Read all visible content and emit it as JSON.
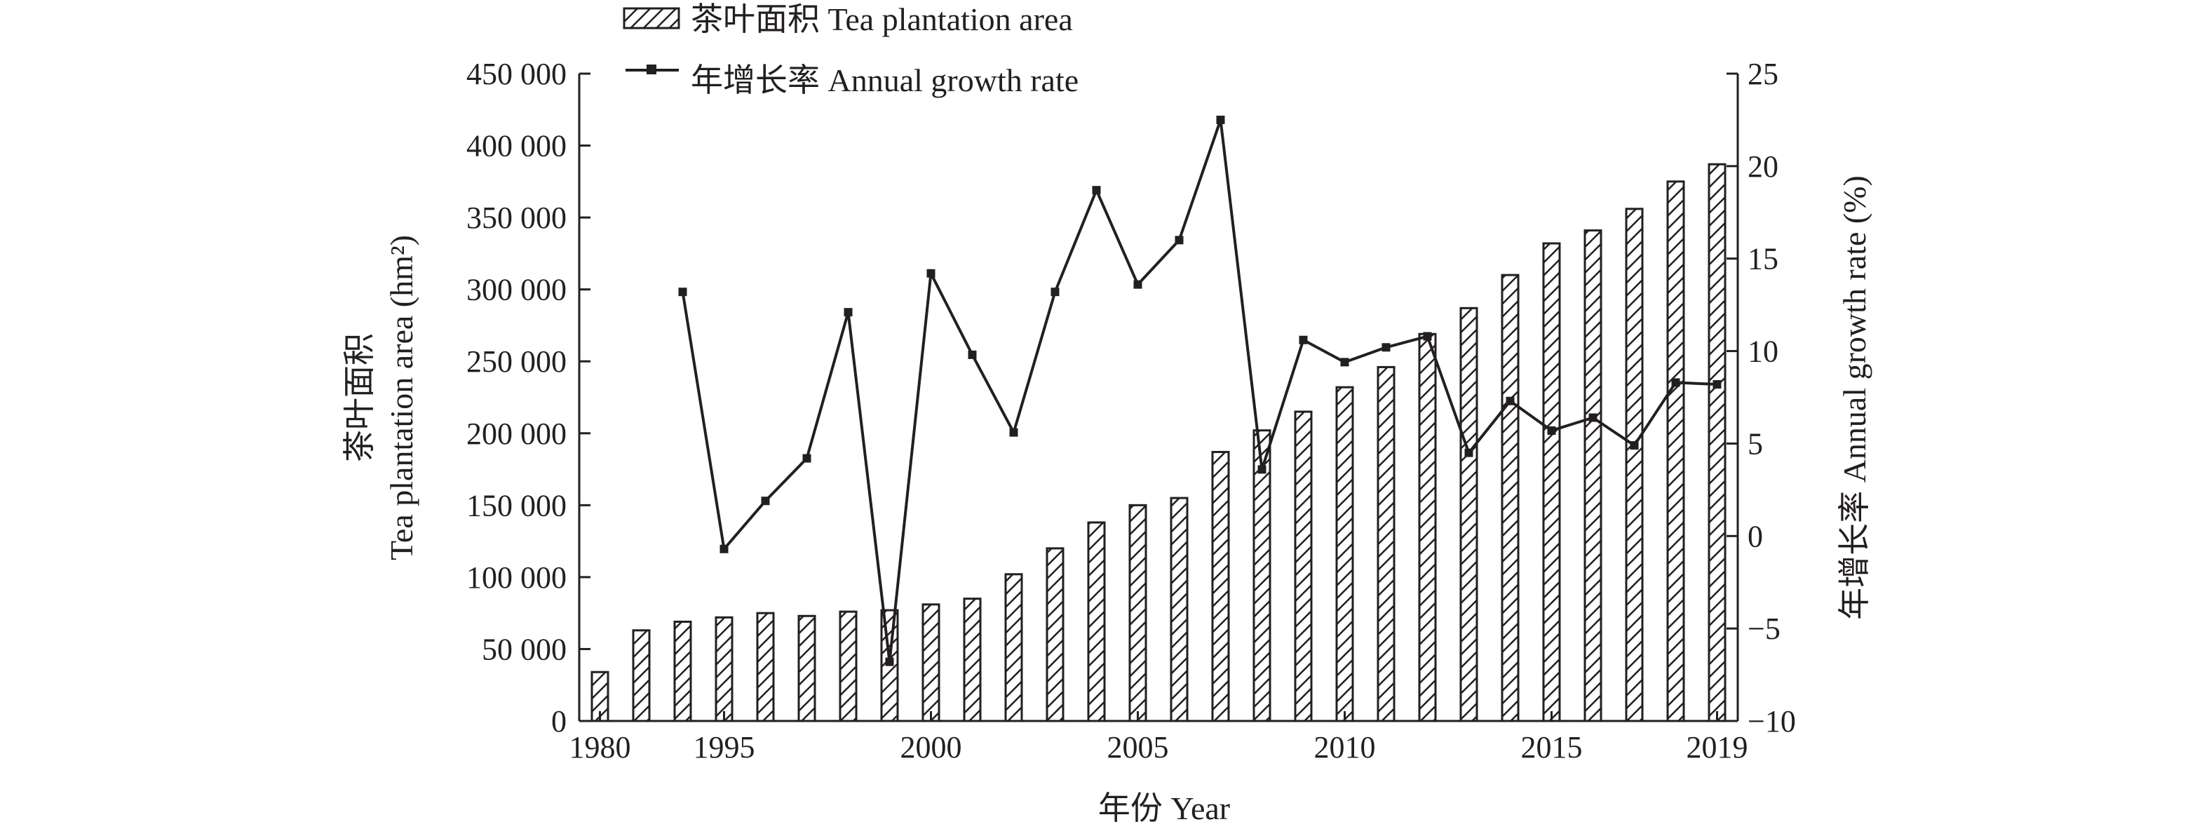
{
  "chart_data": {
    "type": "bar",
    "categories": [
      "1980",
      "1993",
      "1994",
      "1995",
      "1996",
      "1997",
      "1998",
      "1999",
      "2000",
      "2001",
      "2002",
      "2003",
      "2004",
      "2005",
      "2006",
      "2007",
      "2008",
      "2009",
      "2010",
      "2011",
      "2012",
      "2013",
      "2014",
      "2015",
      "2016",
      "2017",
      "2018",
      "2019"
    ],
    "x_tick_labels": [
      "1980",
      "1995",
      "2000",
      "2005",
      "2010",
      "2015",
      "2019"
    ],
    "series": [
      {
        "name": "茶叶面积 Tea plantation area",
        "type": "bar",
        "axis": "left",
        "values": [
          34000,
          63000,
          69000,
          72000,
          75000,
          73000,
          76000,
          77000,
          81000,
          85000,
          102000,
          120000,
          138000,
          150000,
          155000,
          187000,
          202000,
          215000,
          232000,
          246000,
          269000,
          287000,
          310000,
          332000,
          341000,
          356000,
          375000,
          387000
        ]
      },
      {
        "name": "年增长率 Annual growth rate",
        "type": "line",
        "axis": "right",
        "values": [
          null,
          null,
          13.2,
          -0.7,
          1.9,
          4.2,
          12.1,
          -6.8,
          14.2,
          9.8,
          5.6,
          13.2,
          18.7,
          13.6,
          16.0,
          22.5,
          3.6,
          10.6,
          9.4,
          10.2,
          10.8,
          4.5,
          7.3,
          5.7,
          6.4,
          4.9,
          8.3,
          8.2
        ]
      }
    ],
    "y_left": {
      "label_cn": "茶叶面积",
      "label_en": "Tea plantation area (hm²)",
      "range": [
        0,
        450000
      ],
      "ticks": [
        0,
        50000,
        100000,
        150000,
        200000,
        250000,
        300000,
        350000,
        400000,
        450000
      ],
      "tick_labels": [
        "0",
        "50 000",
        "100 000",
        "150 000",
        "200 000",
        "250 000",
        "300 000",
        "350 000",
        "400 000",
        "450 000"
      ]
    },
    "y_right": {
      "label": "年增长率 Annual growth rate (%)",
      "range": [
        -10,
        25
      ],
      "ticks": [
        -10,
        -5,
        0,
        5,
        10,
        15,
        20,
        25
      ],
      "tick_labels": [
        "−10",
        "−5",
        "0",
        "5",
        "10",
        "15",
        "20",
        "25"
      ]
    },
    "xlabel": "年份 Year",
    "legend_position": "top-left",
    "grid": false,
    "colors": {
      "axis": "#231f20",
      "bar_hatch": "#231f20",
      "bar_fill": "#ffffff",
      "line": "#231f20"
    }
  }
}
